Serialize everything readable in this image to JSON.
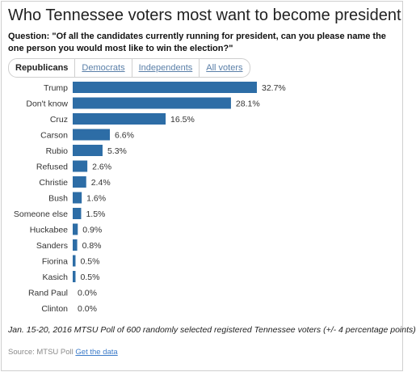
{
  "title": "Who Tennessee voters most want to become president",
  "question": "Question: \"Of all the candidates currently running for president, can you please name the one person you would most like to win the election?\"",
  "tabs": [
    {
      "label": "Republicans",
      "active": true
    },
    {
      "label": "Democrats",
      "active": false
    },
    {
      "label": "Independents",
      "active": false
    },
    {
      "label": "All voters",
      "active": false
    }
  ],
  "chart_data": {
    "type": "bar",
    "orientation": "horizontal",
    "categories": [
      "Trump",
      "Don't know",
      "Cruz",
      "Carson",
      "Rubio",
      "Refused",
      "Christie",
      "Bush",
      "Someone else",
      "Huckabee",
      "Sanders",
      "Fiorina",
      "Kasich",
      "Rand Paul",
      "Clinton"
    ],
    "values": [
      32.7,
      28.1,
      16.5,
      6.6,
      5.3,
      2.6,
      2.4,
      1.6,
      1.5,
      0.9,
      0.8,
      0.5,
      0.5,
      0.0,
      0.0
    ],
    "value_labels": [
      "32.7%",
      "28.1%",
      "16.5%",
      "6.6%",
      "5.3%",
      "2.6%",
      "2.4%",
      "1.6%",
      "1.5%",
      "0.9%",
      "0.8%",
      "0.5%",
      "0.5%",
      "0.0%",
      "0.0%"
    ],
    "bar_color": "#2d6da6",
    "xlim": [
      0,
      32.7
    ]
  },
  "footnote": "Jan. 15-20, 2016 MTSU Poll of 600 randomly selected registered Tennessee voters (+/- 4 percentage points)",
  "source": {
    "prefix": "Source: MTSU Poll",
    "link": "Get the data"
  }
}
